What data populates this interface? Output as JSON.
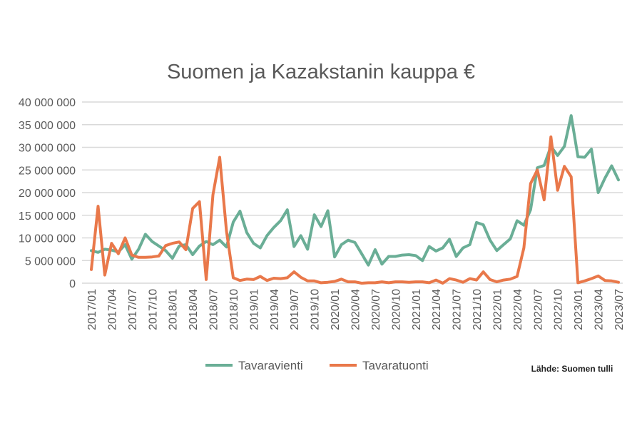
{
  "chart_data": {
    "type": "line",
    "title": "Suomen ja Kazakstanin kauppa €",
    "xlabel": "",
    "ylabel": "",
    "ylim": [
      0,
      40000000
    ],
    "yticks": [
      0,
      5000000,
      10000000,
      15000000,
      20000000,
      25000000,
      30000000,
      35000000,
      40000000
    ],
    "ytick_labels": [
      "0",
      "5 000 000",
      "10 000 000",
      "15 000 000",
      "20 000 000",
      "25 000 000",
      "30 000 000",
      "35 000 000",
      "40 000 000"
    ],
    "grid": true,
    "legend_position": "bottom",
    "x_start": "2017/01",
    "months": 79,
    "xtick_labels": [
      "2017/01",
      "2017/04",
      "2017/07",
      "2017/10",
      "2018/01",
      "2018/04",
      "2018/07",
      "2018/10",
      "2019/01",
      "2019/04",
      "2019/07",
      "2019/10",
      "2020/01",
      "2020/04",
      "2020/07",
      "2020/10",
      "2021/01",
      "2021/04",
      "2021/07",
      "2021/10",
      "2022/01",
      "2022/04",
      "2022/07",
      "2022/10",
      "2023/01",
      "2023/04",
      "2023/07"
    ],
    "series": [
      {
        "name": "Tavaravienti",
        "color": "#6aae96",
        "values_millions": [
          7.2,
          6.8,
          7.5,
          7.3,
          6.9,
          8.5,
          5.3,
          7.5,
          10.8,
          9.2,
          8.2,
          7.2,
          5.5,
          8.2,
          8.5,
          6.3,
          8.2,
          9.2,
          8.5,
          9.5,
          8.0,
          13.5,
          15.9,
          11.2,
          8.8,
          7.8,
          10.5,
          12.3,
          13.8,
          16.2,
          8.1,
          10.5,
          7.5,
          15.1,
          12.5,
          16.0,
          5.8,
          8.5,
          9.5,
          9.0,
          6.5,
          4.0,
          7.4,
          4.2,
          5.9,
          5.9,
          6.2,
          6.3,
          6.1,
          5.0,
          8.1,
          7.1,
          7.8,
          9.7,
          5.9,
          7.8,
          8.5,
          13.4,
          12.9,
          9.5,
          7.2,
          8.5,
          9.8,
          13.8,
          12.8,
          16.2,
          25.5,
          26.0,
          30.2,
          28.2,
          30.2,
          37.0,
          27.9,
          27.8,
          29.6,
          20.0,
          23.2,
          25.9,
          22.8
        ]
      },
      {
        "name": "Tavaratuonti",
        "color": "#e9784a",
        "values_millions": [
          3.0,
          17.0,
          1.8,
          8.8,
          6.5,
          10.0,
          6.2,
          5.7,
          5.7,
          5.8,
          6.0,
          8.3,
          8.8,
          9.1,
          7.4,
          16.5,
          18.0,
          0.8,
          19.5,
          27.8,
          11.5,
          1.2,
          0.6,
          0.9,
          0.8,
          1.5,
          0.6,
          1.1,
          1.0,
          1.2,
          2.5,
          1.3,
          0.5,
          0.5,
          0.1,
          0.2,
          0.4,
          0.9,
          0.3,
          0.3,
          0.0,
          0.1,
          0.1,
          0.3,
          0.1,
          0.3,
          0.3,
          0.2,
          0.3,
          0.3,
          0.1,
          0.7,
          0.0,
          1.0,
          0.7,
          0.2,
          1.0,
          0.7,
          2.5,
          0.8,
          0.3,
          0.7,
          0.9,
          1.5,
          7.8,
          22.0,
          25.0,
          18.4,
          32.3,
          20.5,
          25.8,
          23.5,
          0.1,
          0.5,
          1.0,
          1.6,
          0.6,
          0.5,
          0.2
        ]
      }
    ],
    "source": "Lähde: Suomen tulli"
  }
}
